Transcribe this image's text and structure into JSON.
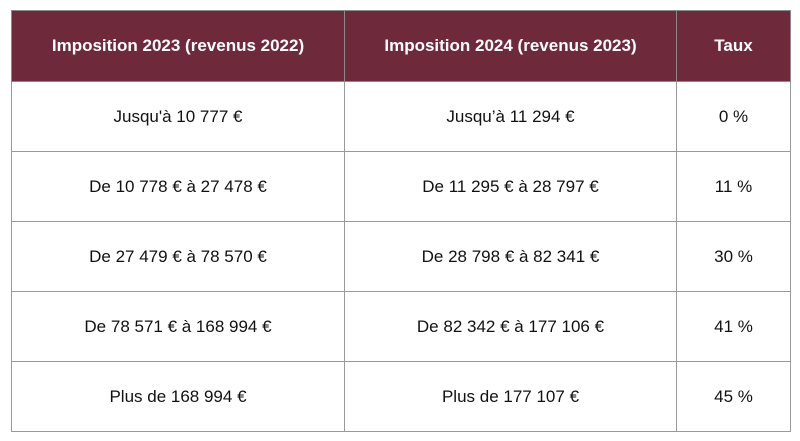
{
  "table": {
    "header_color": "#6e2a3b",
    "headers": [
      "Imposition 2023 (revenus 2022)",
      "Imposition 2024 (revenus 2023)",
      "Taux"
    ],
    "rows": [
      [
        "Jusqu'à 10 777 €",
        "Jusqu’à 11 294 €",
        "0 %"
      ],
      [
        "De 10 778 € à 27 478 €",
        "De 11 295 € à 28 797 €",
        "11 %"
      ],
      [
        "De 27 479 € à 78 570 €",
        "De 28 798 € à 82 341 €",
        "30 %"
      ],
      [
        "De 78 571 € à 168 994 €",
        "De 82 342 € à 177 106 €",
        "41 %"
      ],
      [
        "Plus de 168 994 €",
        "Plus de 177 107 €",
        "45 %"
      ]
    ]
  }
}
